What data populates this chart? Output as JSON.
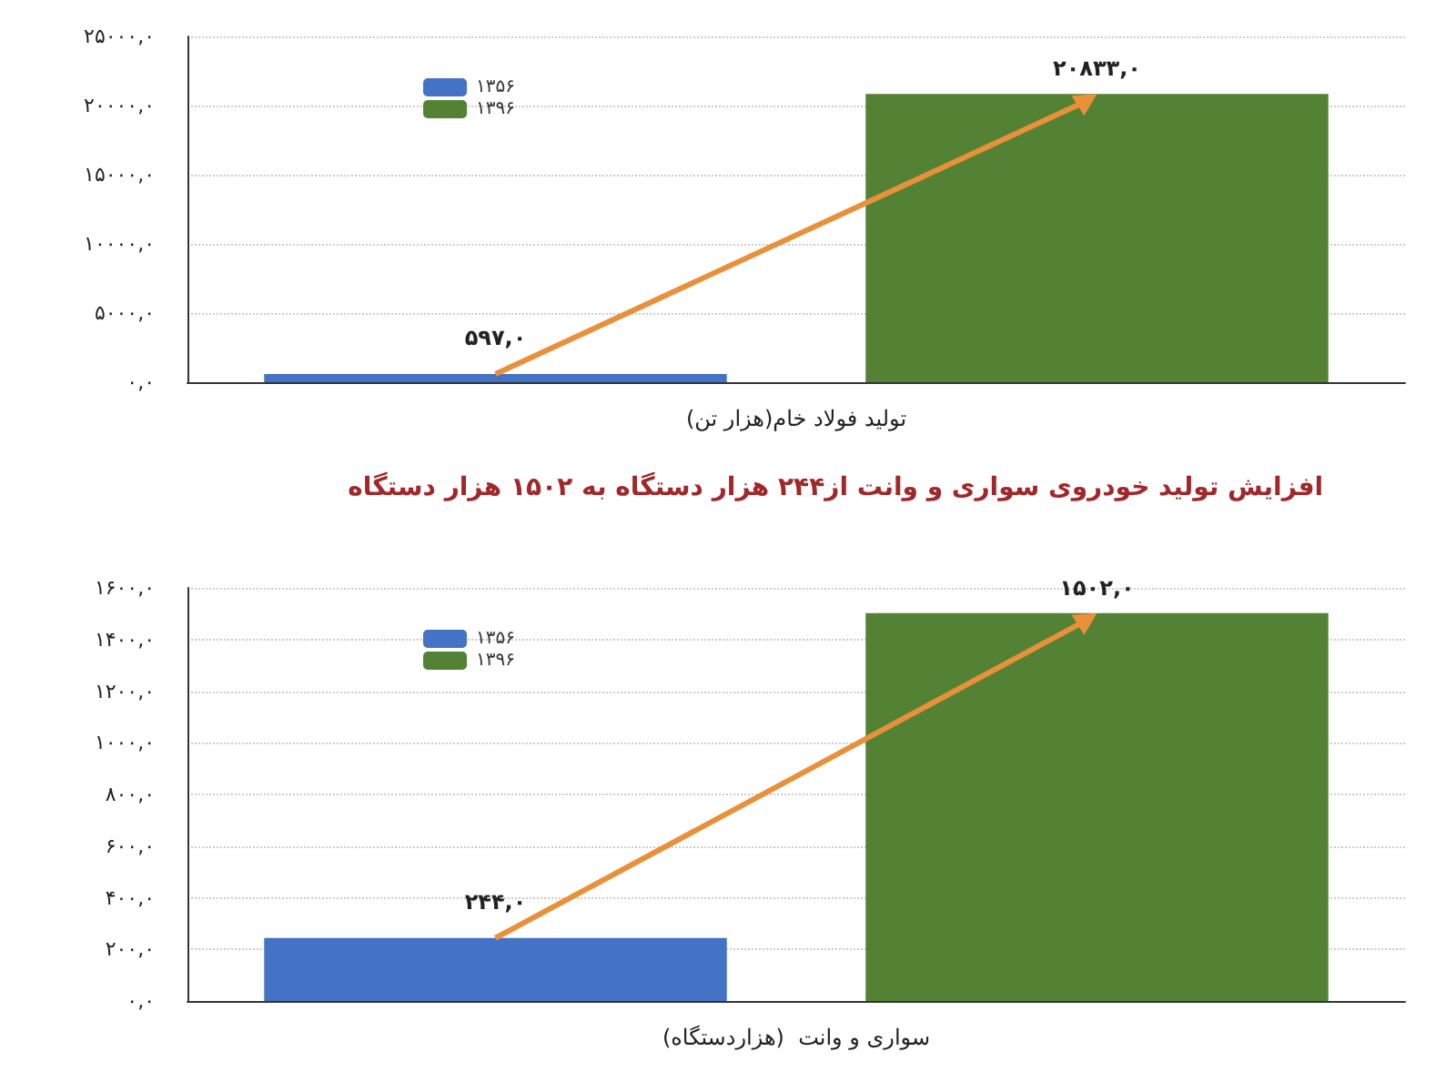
{
  "chart_data": [
    {
      "type": "bar",
      "categories": [
        "تولید فولاد خام(هزار تن)"
      ],
      "series": [
        {
          "name": "۱۳۵۶",
          "color": "#4472c4",
          "values": [
            597
          ],
          "value_labels": [
            "۵۹۷,۰"
          ]
        },
        {
          "name": "۱۳۹۶",
          "color": "#548235",
          "values": [
            20833
          ],
          "value_labels": [
            "۲۰۸۳۳,۰"
          ]
        }
      ],
      "ylim": [
        0,
        25000
      ],
      "yticks": [
        {
          "value": 0,
          "label": "۰,۰"
        },
        {
          "value": 5000,
          "label": "۵۰۰۰,۰"
        },
        {
          "value": 10000,
          "label": "۱۰۰۰۰,۰"
        },
        {
          "value": 15000,
          "label": "۱۵۰۰۰,۰"
        },
        {
          "value": 20000,
          "label": "۲۰۰۰۰,۰"
        },
        {
          "value": 25000,
          "label": "۲۵۰۰۰,۰"
        }
      ],
      "grid": "y",
      "legend": "top left"
    },
    {
      "type": "bar",
      "title": "افزایش تولید خودروی سواری و وانت از۲۴۴ هزار دستگاه به ۱۵۰۲ هزار دستگاه",
      "categories": [
        "سواری و وانت  (هزاردستگاه)"
      ],
      "series": [
        {
          "name": "۱۳۵۶",
          "color": "#4472c4",
          "values": [
            244
          ],
          "value_labels": [
            "۲۴۴,۰"
          ]
        },
        {
          "name": "۱۳۹۶",
          "color": "#548235",
          "values": [
            1502
          ],
          "value_labels": [
            "۱۵۰۲,۰"
          ]
        }
      ],
      "ylim": [
        0,
        1600
      ],
      "yticks": [
        {
          "value": 0,
          "label": "۰,۰"
        },
        {
          "value": 200,
          "label": "۲۰۰,۰"
        },
        {
          "value": 400,
          "label": "۴۰۰,۰"
        },
        {
          "value": 600,
          "label": "۶۰۰,۰"
        },
        {
          "value": 800,
          "label": "۸۰۰,۰"
        },
        {
          "value": 1000,
          "label": "۱۰۰۰,۰"
        },
        {
          "value": 1200,
          "label": "۱۲۰۰,۰"
        },
        {
          "value": 1400,
          "label": "۱۴۰۰,۰"
        },
        {
          "value": 1600,
          "label": "۱۶۰۰,۰"
        }
      ],
      "grid": "y",
      "legend": "top left"
    }
  ]
}
